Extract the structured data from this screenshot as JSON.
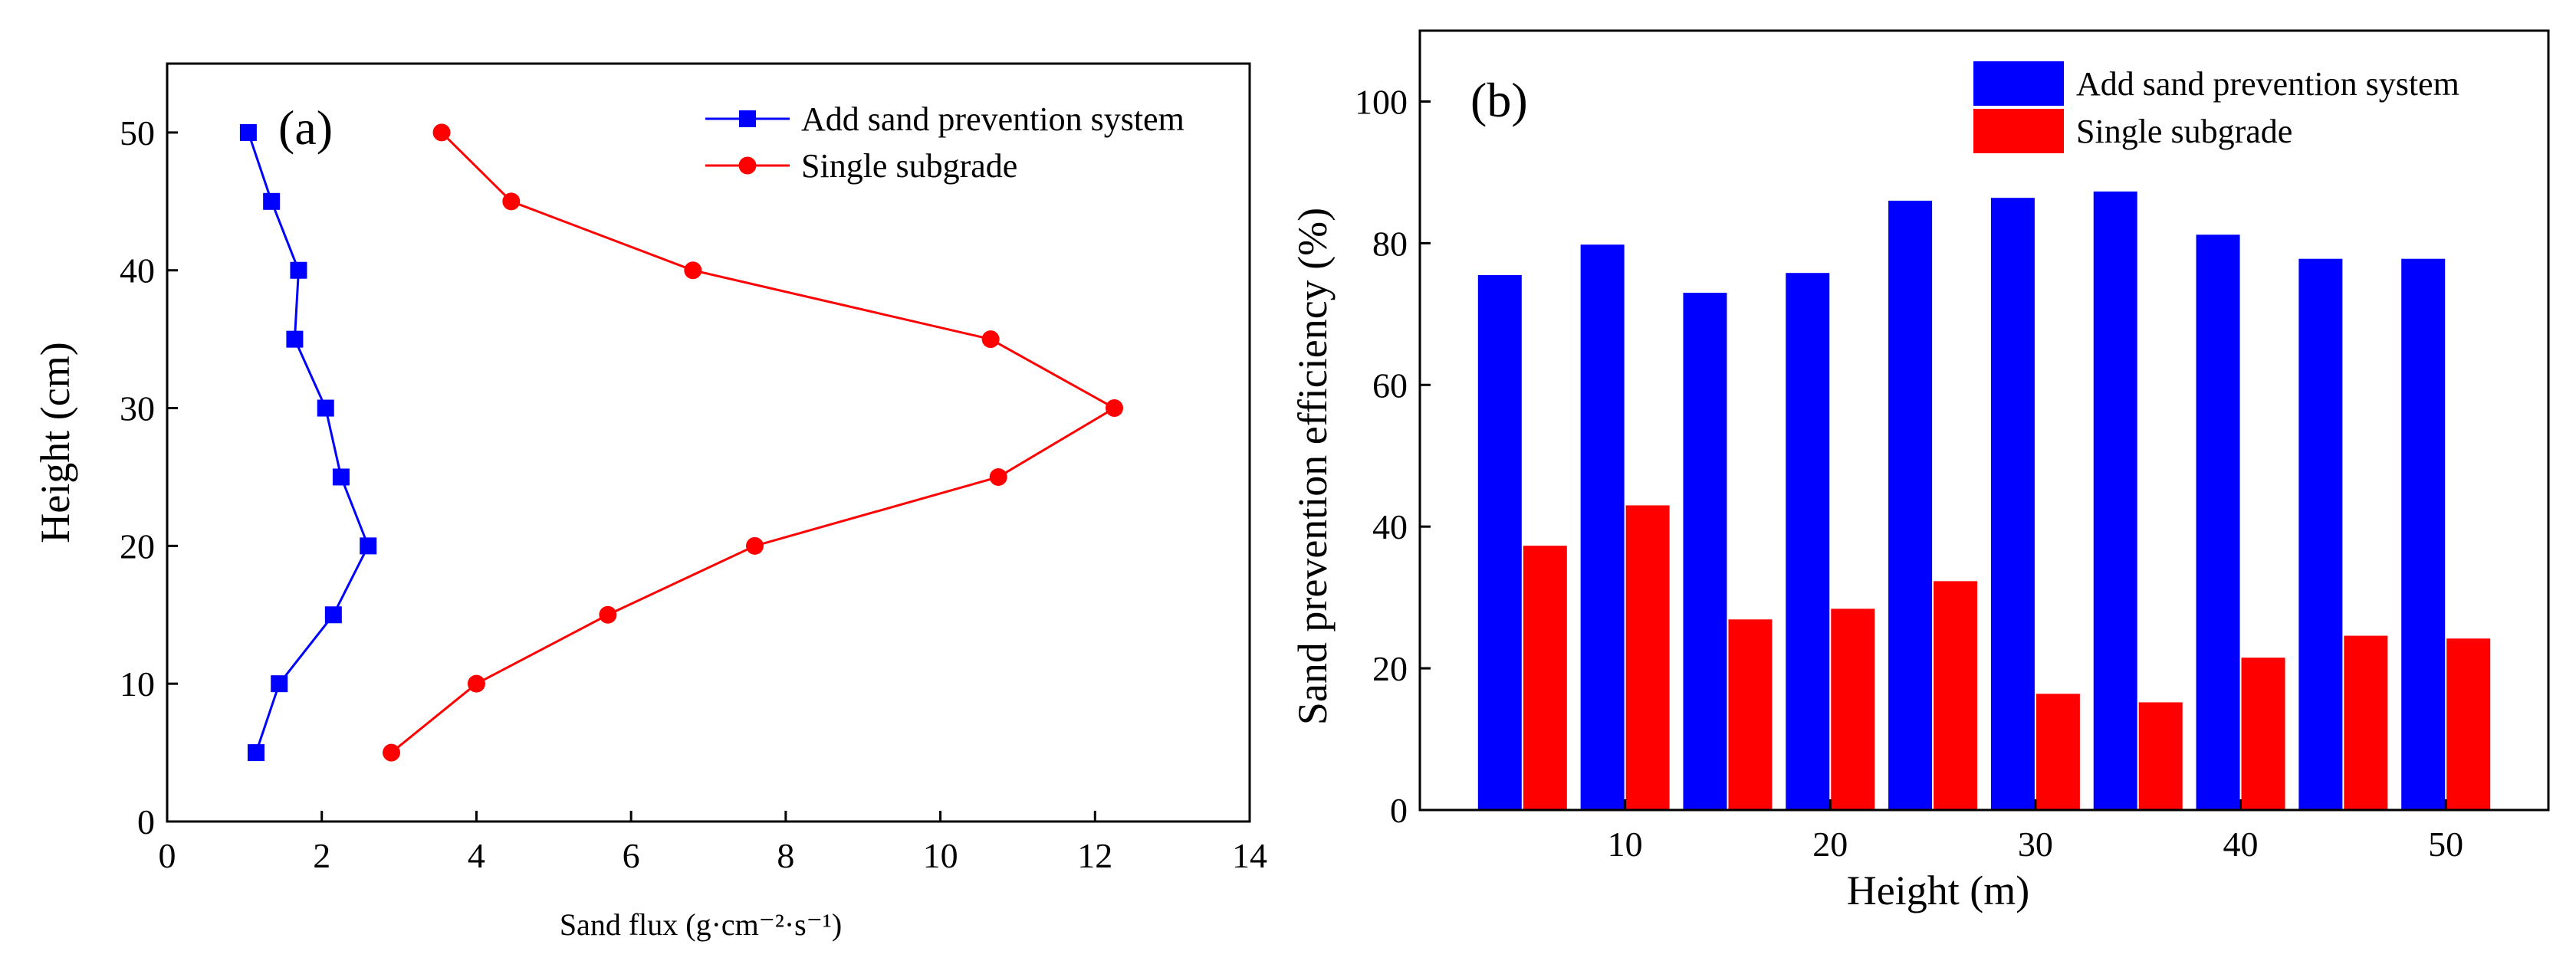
{
  "chart_data": [
    {
      "type": "line",
      "panel_label": "(a)",
      "title": "",
      "xlabel": "Sand flux (g·cm⁻²·s⁻¹)",
      "ylabel": "Height (cm)",
      "xlim": [
        0,
        14
      ],
      "ylim": [
        0,
        55
      ],
      "xticks": [
        0,
        2,
        4,
        6,
        8,
        10,
        12,
        14
      ],
      "yticks": [
        0,
        10,
        20,
        30,
        40,
        50
      ],
      "legend_position": "top-right",
      "series": [
        {
          "name": "Add sand prevention system",
          "color": "#0000ff",
          "marker": "square",
          "x": [
            1.15,
            1.45,
            2.15,
            2.6,
            2.25,
            2.05,
            1.65,
            1.7,
            1.35,
            1.05
          ],
          "y": [
            5,
            10,
            15,
            20,
            25,
            30,
            35,
            40,
            45,
            50
          ]
        },
        {
          "name": "Single subgrade",
          "color": "#ff0000",
          "marker": "circle",
          "x": [
            2.9,
            4.0,
            5.7,
            7.6,
            10.75,
            12.25,
            10.65,
            6.8,
            4.45,
            3.55
          ],
          "y": [
            5,
            10,
            15,
            20,
            25,
            30,
            35,
            40,
            45,
            50
          ]
        }
      ]
    },
    {
      "type": "bar",
      "panel_label": "(b)",
      "title": "",
      "xlabel": "Height (m)",
      "ylabel": "Sand prevention efficiency (%)",
      "ylim": [
        0,
        110
      ],
      "xlim": [
        0,
        55
      ],
      "yticks": [
        0,
        20,
        40,
        60,
        80,
        100
      ],
      "xticks": [
        10,
        20,
        30,
        40,
        50
      ],
      "categories": [
        5,
        10,
        15,
        20,
        25,
        30,
        35,
        40,
        45,
        50
      ],
      "legend_position": "top-right",
      "series": [
        {
          "name": "Add sand prevention system",
          "color": "#0000ff",
          "values": [
            75.5,
            79.8,
            73.0,
            75.8,
            86.0,
            86.4,
            87.3,
            81.2,
            77.8,
            77.8
          ]
        },
        {
          "name": "Single subgrade",
          "color": "#ff0000",
          "values": [
            37.3,
            43.0,
            26.9,
            28.4,
            32.3,
            16.4,
            15.2,
            21.5,
            24.6,
            24.2
          ]
        }
      ]
    }
  ]
}
